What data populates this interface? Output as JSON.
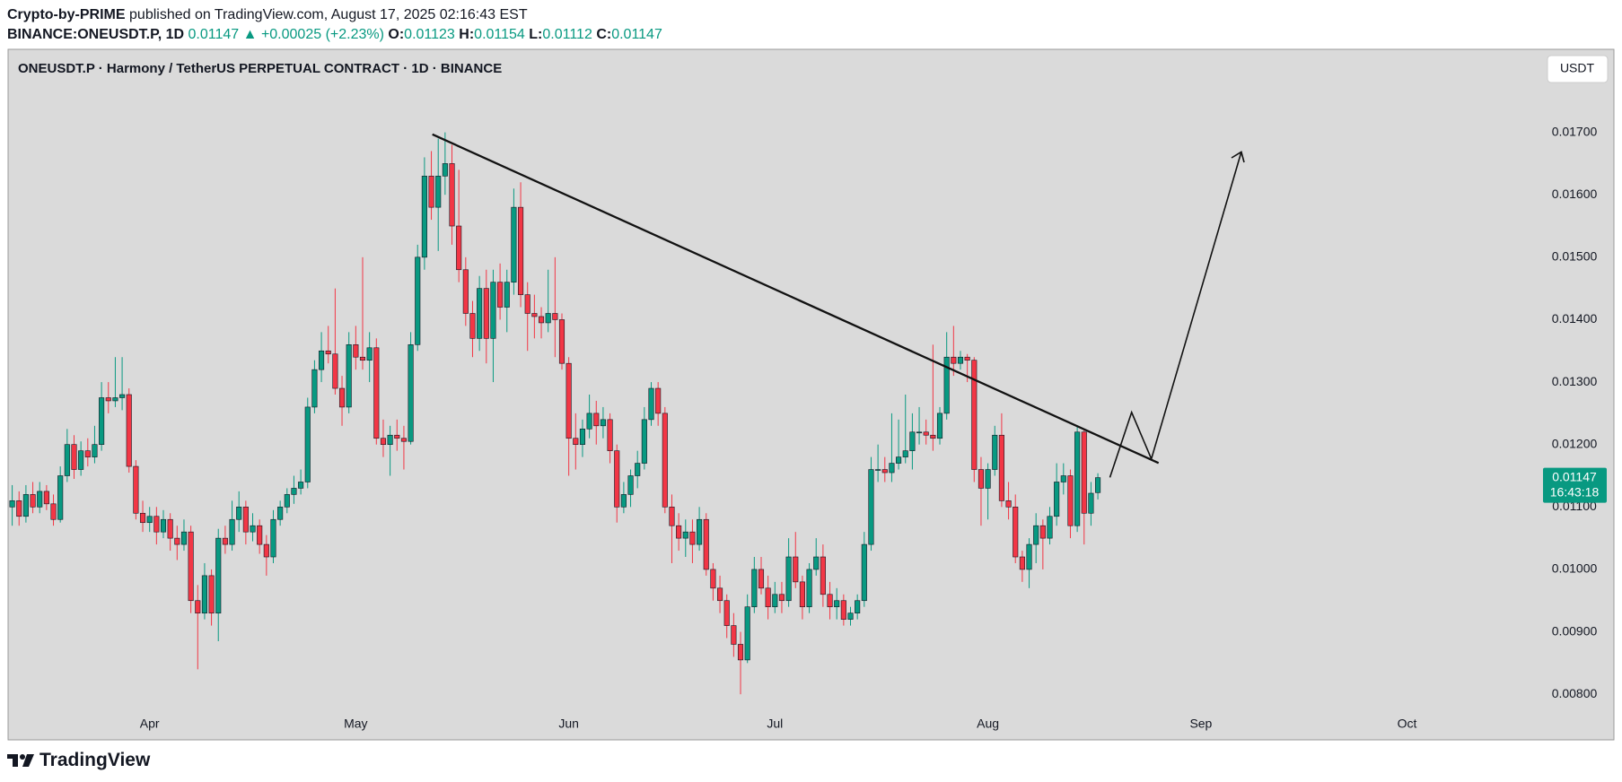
{
  "header": {
    "author": "Crypto-by-PRIME",
    "published": "published on TradingView.com, August 17, 2025 02:16:43 EST",
    "symbol": "BINANCE:ONEUSDT.P, 1D",
    "arrow": "▲",
    "change": "+0.00025 (+2.23%)",
    "o": "O:",
    "h": "H:",
    "l": "L:",
    "c": "C:"
  },
  "footer": {
    "brand": "TradingView"
  },
  "chart_data": {
    "type": "candlestick",
    "title": "ONEUSDT.P · Harmony / TetherUS PERPETUAL CONTRACT · 1D · BINANCE",
    "currency": "USDT",
    "countdown": "16:43:18",
    "up_color": "#089981",
    "down_color": "#f23645",
    "grid": false,
    "xlim": [
      -0.6,
      222
    ],
    "ylim": [
      0.00727,
      0.01833
    ],
    "xticks": [
      {
        "value": 20,
        "label": "Apr"
      },
      {
        "value": 50,
        "label": "May"
      },
      {
        "value": 81,
        "label": "Jun"
      },
      {
        "value": 111,
        "label": "Jul"
      },
      {
        "value": 142,
        "label": "Aug"
      },
      {
        "value": 173,
        "label": "Sep"
      },
      {
        "value": 203,
        "label": "Oct"
      }
    ],
    "yticks": [
      {
        "value": 0.008,
        "label": "0.00800"
      },
      {
        "value": 0.009,
        "label": "0.00900"
      },
      {
        "value": 0.01,
        "label": "0.01000"
      },
      {
        "value": 0.011,
        "label": "0.01100"
      },
      {
        "value": 0.012,
        "label": "0.01200"
      },
      {
        "value": 0.013,
        "label": "0.01300"
      },
      {
        "value": 0.014,
        "label": "0.01400"
      },
      {
        "value": 0.015,
        "label": "0.01500"
      },
      {
        "value": 0.016,
        "label": "0.01600"
      },
      {
        "value": 0.017,
        "label": "0.01700"
      }
    ],
    "candles": [
      [
        0.011,
        0.01135,
        0.0107,
        0.0111
      ],
      [
        0.0111,
        0.01125,
        0.0107,
        0.01085
      ],
      [
        0.01085,
        0.01135,
        0.01075,
        0.0112
      ],
      [
        0.0112,
        0.0114,
        0.0109,
        0.011
      ],
      [
        0.011,
        0.0114,
        0.0109,
        0.01125
      ],
      [
        0.01125,
        0.01135,
        0.01095,
        0.01105
      ],
      [
        0.01105,
        0.0112,
        0.0107,
        0.0108
      ],
      [
        0.0108,
        0.01165,
        0.01075,
        0.0115
      ],
      [
        0.0115,
        0.01225,
        0.0114,
        0.012
      ],
      [
        0.012,
        0.01215,
        0.01145,
        0.0116
      ],
      [
        0.0116,
        0.01205,
        0.0115,
        0.0119
      ],
      [
        0.0119,
        0.0121,
        0.01165,
        0.0118
      ],
      [
        0.0118,
        0.0123,
        0.0117,
        0.012
      ],
      [
        0.012,
        0.013,
        0.0119,
        0.01275
      ],
      [
        0.01275,
        0.013,
        0.0125,
        0.0127
      ],
      [
        0.0127,
        0.0134,
        0.0126,
        0.01275
      ],
      [
        0.01275,
        0.0134,
        0.01255,
        0.0128
      ],
      [
        0.0128,
        0.0129,
        0.01155,
        0.01165
      ],
      [
        0.01165,
        0.01175,
        0.0108,
        0.0109
      ],
      [
        0.0109,
        0.0111,
        0.0106,
        0.01075
      ],
      [
        0.01075,
        0.011,
        0.0106,
        0.01085
      ],
      [
        0.01085,
        0.011,
        0.0104,
        0.0106
      ],
      [
        0.0106,
        0.01095,
        0.0105,
        0.0108
      ],
      [
        0.0108,
        0.0109,
        0.0103,
        0.0105
      ],
      [
        0.0105,
        0.0107,
        0.01015,
        0.0104
      ],
      [
        0.0104,
        0.0108,
        0.0103,
        0.0106
      ],
      [
        0.0106,
        0.0107,
        0.0093,
        0.0095
      ],
      [
        0.0095,
        0.00975,
        0.0084,
        0.0093
      ],
      [
        0.0093,
        0.0101,
        0.0092,
        0.0099
      ],
      [
        0.0099,
        0.01,
        0.0091,
        0.0093
      ],
      [
        0.0093,
        0.01065,
        0.00885,
        0.0105
      ],
      [
        0.0105,
        0.0107,
        0.01025,
        0.0104
      ],
      [
        0.0104,
        0.0111,
        0.0103,
        0.0108
      ],
      [
        0.0108,
        0.01125,
        0.0106,
        0.011
      ],
      [
        0.011,
        0.0111,
        0.0104,
        0.0106
      ],
      [
        0.0106,
        0.0109,
        0.01045,
        0.0107
      ],
      [
        0.0107,
        0.0108,
        0.01025,
        0.0104
      ],
      [
        0.0104,
        0.01055,
        0.0099,
        0.0102
      ],
      [
        0.0102,
        0.01095,
        0.0101,
        0.0108
      ],
      [
        0.0108,
        0.0111,
        0.0107,
        0.011
      ],
      [
        0.011,
        0.0113,
        0.0109,
        0.0112
      ],
      [
        0.0112,
        0.0115,
        0.01105,
        0.0113
      ],
      [
        0.0113,
        0.0116,
        0.0112,
        0.0114
      ],
      [
        0.0114,
        0.01275,
        0.0113,
        0.0126
      ],
      [
        0.0126,
        0.01335,
        0.0125,
        0.0132
      ],
      [
        0.0132,
        0.0138,
        0.013,
        0.0135
      ],
      [
        0.0135,
        0.0139,
        0.0133,
        0.01345
      ],
      [
        0.01345,
        0.0145,
        0.0128,
        0.0129
      ],
      [
        0.0129,
        0.0131,
        0.0123,
        0.0126
      ],
      [
        0.0126,
        0.0138,
        0.0125,
        0.0136
      ],
      [
        0.0136,
        0.0139,
        0.0132,
        0.0134
      ],
      [
        0.0134,
        0.015,
        0.0132,
        0.01335
      ],
      [
        0.01335,
        0.0138,
        0.013,
        0.01355
      ],
      [
        0.01355,
        0.0137,
        0.012,
        0.0121
      ],
      [
        0.0121,
        0.0124,
        0.0118,
        0.012
      ],
      [
        0.012,
        0.0123,
        0.0115,
        0.01215
      ],
      [
        0.01215,
        0.0124,
        0.0119,
        0.0121
      ],
      [
        0.0121,
        0.0123,
        0.0116,
        0.01205
      ],
      [
        0.01205,
        0.0138,
        0.012,
        0.0136
      ],
      [
        0.0136,
        0.0152,
        0.0135,
        0.015
      ],
      [
        0.015,
        0.0166,
        0.0148,
        0.0163
      ],
      [
        0.0163,
        0.0167,
        0.0156,
        0.0158
      ],
      [
        0.0158,
        0.0169,
        0.0151,
        0.0163
      ],
      [
        0.0163,
        0.017,
        0.016,
        0.0165
      ],
      [
        0.0165,
        0.0168,
        0.0152,
        0.0155
      ],
      [
        0.0155,
        0.0164,
        0.0146,
        0.0148
      ],
      [
        0.0148,
        0.015,
        0.0139,
        0.0141
      ],
      [
        0.0141,
        0.0143,
        0.0134,
        0.0137
      ],
      [
        0.0137,
        0.0147,
        0.0135,
        0.0145
      ],
      [
        0.0145,
        0.0148,
        0.0133,
        0.0137
      ],
      [
        0.0137,
        0.0148,
        0.013,
        0.0146
      ],
      [
        0.0146,
        0.0149,
        0.014,
        0.0142
      ],
      [
        0.0142,
        0.0148,
        0.0138,
        0.0146
      ],
      [
        0.0146,
        0.0161,
        0.0144,
        0.0158
      ],
      [
        0.0158,
        0.0162,
        0.0142,
        0.0144
      ],
      [
        0.0144,
        0.0146,
        0.0135,
        0.0141
      ],
      [
        0.0141,
        0.0144,
        0.0137,
        0.01405
      ],
      [
        0.01405,
        0.0142,
        0.0137,
        0.01395
      ],
      [
        0.01395,
        0.0148,
        0.0138,
        0.0141
      ],
      [
        0.0141,
        0.015,
        0.0134,
        0.014
      ],
      [
        0.014,
        0.0141,
        0.0132,
        0.0133
      ],
      [
        0.0133,
        0.0134,
        0.0115,
        0.0121
      ],
      [
        0.0121,
        0.0125,
        0.0116,
        0.012
      ],
      [
        0.012,
        0.0124,
        0.0118,
        0.01225
      ],
      [
        0.01225,
        0.0128,
        0.0121,
        0.0125
      ],
      [
        0.0125,
        0.0127,
        0.012,
        0.0123
      ],
      [
        0.0123,
        0.0126,
        0.0121,
        0.0124
      ],
      [
        0.0124,
        0.0125,
        0.0117,
        0.0119
      ],
      [
        0.0119,
        0.012,
        0.01075,
        0.011
      ],
      [
        0.011,
        0.0114,
        0.0109,
        0.0112
      ],
      [
        0.0112,
        0.0116,
        0.011,
        0.0115
      ],
      [
        0.0115,
        0.0119,
        0.0113,
        0.0117
      ],
      [
        0.0117,
        0.0126,
        0.0116,
        0.0124
      ],
      [
        0.0124,
        0.013,
        0.0123,
        0.0129
      ],
      [
        0.0129,
        0.013,
        0.0123,
        0.0125
      ],
      [
        0.0125,
        0.0126,
        0.0109,
        0.011
      ],
      [
        0.011,
        0.0112,
        0.0101,
        0.0107
      ],
      [
        0.0107,
        0.0109,
        0.0103,
        0.0105
      ],
      [
        0.0105,
        0.0108,
        0.0102,
        0.0106
      ],
      [
        0.0106,
        0.0108,
        0.0101,
        0.0104
      ],
      [
        0.0104,
        0.011,
        0.0103,
        0.0108
      ],
      [
        0.0108,
        0.0109,
        0.0099,
        0.01
      ],
      [
        0.01,
        0.0101,
        0.0095,
        0.0097
      ],
      [
        0.0097,
        0.0099,
        0.0093,
        0.0095
      ],
      [
        0.0095,
        0.0096,
        0.0089,
        0.0091
      ],
      [
        0.0091,
        0.0093,
        0.0086,
        0.0088
      ],
      [
        0.0088,
        0.009,
        0.008,
        0.00855
      ],
      [
        0.00855,
        0.0096,
        0.0085,
        0.0094
      ],
      [
        0.0094,
        0.0102,
        0.0093,
        0.01
      ],
      [
        0.01,
        0.0102,
        0.0096,
        0.0097
      ],
      [
        0.0097,
        0.0099,
        0.0092,
        0.0094
      ],
      [
        0.0094,
        0.0098,
        0.0093,
        0.0096
      ],
      [
        0.0096,
        0.0098,
        0.0093,
        0.0095
      ],
      [
        0.0095,
        0.0105,
        0.0094,
        0.0102
      ],
      [
        0.0102,
        0.0106,
        0.0097,
        0.0098
      ],
      [
        0.0098,
        0.0099,
        0.0092,
        0.0094
      ],
      [
        0.0094,
        0.0101,
        0.0093,
        0.01
      ],
      [
        0.01,
        0.0105,
        0.0099,
        0.0102
      ],
      [
        0.0102,
        0.0104,
        0.0094,
        0.0096
      ],
      [
        0.0096,
        0.0098,
        0.0092,
        0.0094
      ],
      [
        0.0094,
        0.0097,
        0.0092,
        0.0095
      ],
      [
        0.0095,
        0.0096,
        0.0091,
        0.0092
      ],
      [
        0.0092,
        0.0094,
        0.0091,
        0.0093
      ],
      [
        0.0093,
        0.0096,
        0.0092,
        0.0095
      ],
      [
        0.0095,
        0.0106,
        0.0094,
        0.0104
      ],
      [
        0.0104,
        0.0118,
        0.0103,
        0.0116
      ],
      [
        0.0116,
        0.012,
        0.0114,
        0.0116
      ],
      [
        0.0116,
        0.0118,
        0.0114,
        0.01155
      ],
      [
        0.01155,
        0.0125,
        0.0114,
        0.0117
      ],
      [
        0.0117,
        0.0124,
        0.0116,
        0.0118
      ],
      [
        0.0118,
        0.0128,
        0.0117,
        0.0119
      ],
      [
        0.0119,
        0.0125,
        0.0116,
        0.0122
      ],
      [
        0.0122,
        0.0126,
        0.012,
        0.0122
      ],
      [
        0.0122,
        0.0124,
        0.012,
        0.01215
      ],
      [
        0.01215,
        0.0136,
        0.0119,
        0.0121
      ],
      [
        0.0121,
        0.0126,
        0.012,
        0.0125
      ],
      [
        0.0125,
        0.0138,
        0.0124,
        0.0134
      ],
      [
        0.0134,
        0.0139,
        0.0131,
        0.0133
      ],
      [
        0.0133,
        0.0135,
        0.0132,
        0.0134
      ],
      [
        0.0134,
        0.01345,
        0.013,
        0.01335
      ],
      [
        0.01335,
        0.0134,
        0.0114,
        0.0116
      ],
      [
        0.0116,
        0.0118,
        0.0107,
        0.0113
      ],
      [
        0.0113,
        0.0117,
        0.0108,
        0.0116
      ],
      [
        0.0116,
        0.0123,
        0.0115,
        0.01215
      ],
      [
        0.01215,
        0.0125,
        0.011,
        0.0111
      ],
      [
        0.0111,
        0.0114,
        0.0108,
        0.011
      ],
      [
        0.011,
        0.0112,
        0.0101,
        0.0102
      ],
      [
        0.0102,
        0.0103,
        0.0098,
        0.01
      ],
      [
        0.01,
        0.0105,
        0.0097,
        0.0104
      ],
      [
        0.0104,
        0.0109,
        0.0101,
        0.0107
      ],
      [
        0.0107,
        0.0108,
        0.01,
        0.0105
      ],
      [
        0.0105,
        0.011,
        0.0104,
        0.01085
      ],
      [
        0.01085,
        0.0117,
        0.0107,
        0.0114
      ],
      [
        0.0114,
        0.0117,
        0.0112,
        0.0115
      ],
      [
        0.0115,
        0.0116,
        0.0105,
        0.0107
      ],
      [
        0.0107,
        0.0123,
        0.0106,
        0.0122
      ],
      [
        0.0122,
        0.01225,
        0.0104,
        0.0109
      ],
      [
        0.0109,
        0.0114,
        0.0107,
        0.01122
      ],
      [
        0.01123,
        0.01154,
        0.01112,
        0.01147
      ]
    ]
  }
}
